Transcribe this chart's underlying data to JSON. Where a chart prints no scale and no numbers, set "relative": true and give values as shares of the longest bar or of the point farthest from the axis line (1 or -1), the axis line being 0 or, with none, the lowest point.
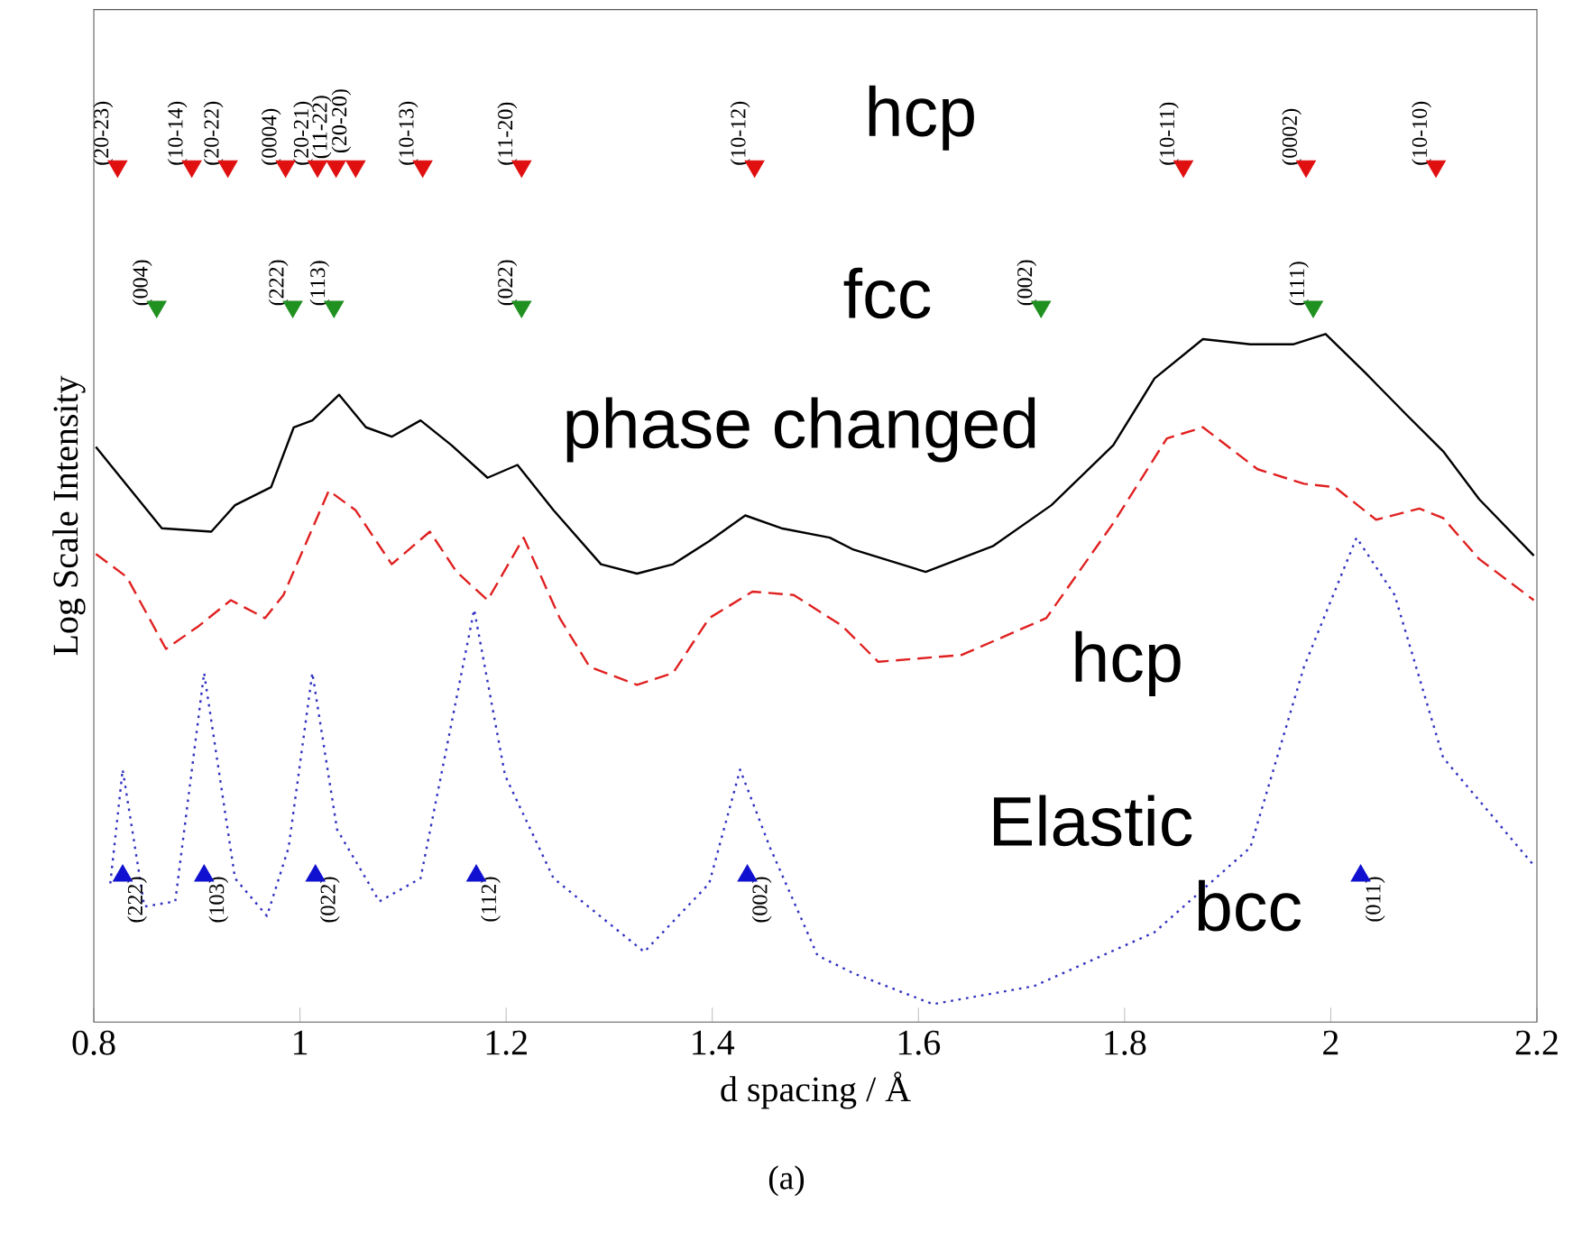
{
  "chart_data": {
    "type": "line",
    "relative": true,
    "xlabel": "d spacing / Å",
    "ylabel": "Log Scale Intensity",
    "xlim": [
      0.8,
      2.2
    ],
    "xticks": [
      0.8,
      1,
      1.2,
      1.4,
      1.6,
      1.8,
      2,
      2.2
    ],
    "legend": false,
    "annotations": [
      "(a)",
      {
        "text": "(20-23)",
        "x": 0.823,
        "y": 1
      },
      {
        "text": "(10-14)",
        "x": 0.895,
        "y": 1
      },
      {
        "text": "(20-22)",
        "x": 0.93,
        "y": 1
      },
      {
        "text": "(0004)",
        "x": 0.986,
        "y": 1
      },
      {
        "text": "(20-21)",
        "x": 1.017,
        "y": 1
      },
      {
        "text": "(11-22)",
        "x": 1.035,
        "y": 1
      },
      {
        "text": "(20-20)",
        "x": 1.054,
        "y": 1
      },
      {
        "text": "(10-13)",
        "x": 1.119,
        "y": 1
      },
      {
        "text": "(11-20)",
        "x": 1.215,
        "y": 1
      },
      {
        "text": "(10-12)",
        "x": 1.441,
        "y": 1
      },
      {
        "text": "(10-11)",
        "x": 1.857,
        "y": 1
      },
      {
        "text": "(0002)",
        "x": 1.976,
        "y": 1
      },
      {
        "text": "(10-10)",
        "x": 2.102,
        "y": 1
      },
      {
        "text": "(004)",
        "x": 0.861,
        "y": 0.836
      },
      {
        "text": "(222)",
        "x": 0.993,
        "y": 0.836
      },
      {
        "text": "(113)",
        "x": 1.033,
        "y": 0.836
      },
      {
        "text": "(022)",
        "x": 1.215,
        "y": 0.836
      },
      {
        "text": "(002)",
        "x": 1.719,
        "y": 0.836
      },
      {
        "text": "(111)",
        "x": 1.983,
        "y": 0.836
      },
      {
        "text": "(222)",
        "x": 0.828,
        "y": 0.171
      },
      {
        "text": "(103)",
        "x": 0.907,
        "y": 0.171
      },
      {
        "text": "(022)",
        "x": 1.015,
        "y": 0.171
      },
      {
        "text": "(112)",
        "x": 1.171,
        "y": 0.171
      },
      {
        "text": "(002)",
        "x": 1.434,
        "y": 0.171
      },
      {
        "text": "(011)",
        "x": 2.029,
        "y": 0.171
      }
    ],
    "series": [
      {
        "name": "phase changed",
        "type": "line",
        "color": "#000000",
        "line_style": "solid",
        "marker": "none",
        "x": [
          0.802,
          0.866,
          0.914,
          0.937,
          0.972,
          0.994,
          1.012,
          1.038,
          1.064,
          1.089,
          1.117,
          1.147,
          1.182,
          1.211,
          1.246,
          1.292,
          1.327,
          1.362,
          1.397,
          1.432,
          1.467,
          1.514,
          1.537,
          1.607,
          1.672,
          1.729,
          1.789,
          1.829,
          1.876,
          1.922,
          1.964,
          1.995,
          2.034,
          2.074,
          2.109,
          2.144,
          2.197
        ],
        "values": [
          0.672,
          0.577,
          0.573,
          0.604,
          0.625,
          0.695,
          0.703,
          0.733,
          0.695,
          0.684,
          0.703,
          0.674,
          0.636,
          0.651,
          0.598,
          0.535,
          0.524,
          0.535,
          0.562,
          0.592,
          0.577,
          0.566,
          0.552,
          0.526,
          0.556,
          0.604,
          0.674,
          0.752,
          0.798,
          0.792,
          0.792,
          0.804,
          0.758,
          0.709,
          0.667,
          0.611,
          0.545
        ]
      },
      {
        "name": "hcp",
        "type": "line",
        "color": "#e02020",
        "line_style": "dashed",
        "marker": "none",
        "x": [
          0.802,
          0.832,
          0.87,
          0.902,
          0.933,
          0.966,
          0.984,
          1.028,
          1.054,
          1.089,
          1.126,
          1.152,
          1.182,
          1.217,
          1.252,
          1.281,
          1.327,
          1.362,
          1.397,
          1.439,
          1.479,
          1.526,
          1.561,
          1.642,
          1.724,
          1.789,
          1.841,
          1.876,
          1.929,
          1.974,
          2.004,
          2.044,
          2.086,
          2.109,
          2.144,
          2.197
        ],
        "values": [
          0.547,
          0.52,
          0.436,
          0.463,
          0.493,
          0.472,
          0.499,
          0.621,
          0.598,
          0.535,
          0.573,
          0.526,
          0.493,
          0.566,
          0.472,
          0.415,
          0.394,
          0.408,
          0.472,
          0.503,
          0.499,
          0.463,
          0.421,
          0.429,
          0.472,
          0.583,
          0.682,
          0.695,
          0.646,
          0.629,
          0.625,
          0.587,
          0.6,
          0.589,
          0.541,
          0.493
        ]
      },
      {
        "name": "Elastic",
        "type": "line",
        "color": "#3030c0",
        "line_style": "dotted",
        "marker": "none",
        "x": [
          0.816,
          0.828,
          0.84,
          0.849,
          0.879,
          0.907,
          0.937,
          0.968,
          0.989,
          1.012,
          1.036,
          1.077,
          1.117,
          1.169,
          1.199,
          1.246,
          1.334,
          1.397,
          1.427,
          1.456,
          1.502,
          1.537,
          1.614,
          1.712,
          1.829,
          1.922,
          1.974,
          2.025,
          2.062,
          2.109,
          2.197
        ],
        "values": [
          0.162,
          0.295,
          0.204,
          0.135,
          0.141,
          0.408,
          0.168,
          0.124,
          0.204,
          0.408,
          0.225,
          0.141,
          0.168,
          0.482,
          0.288,
          0.168,
          0.082,
          0.162,
          0.295,
          0.204,
          0.078,
          0.057,
          0.021,
          0.042,
          0.105,
          0.204,
          0.415,
          0.566,
          0.499,
          0.309,
          0.183
        ]
      },
      {
        "name": "hcp",
        "type": "scatter",
        "color": "#e01010",
        "marker": "triangle",
        "x": [
          0.823,
          0.895,
          0.93,
          0.986,
          1.017,
          1.035,
          1.054,
          1.119,
          1.215,
          1.441,
          1.857,
          1.976,
          2.102
        ],
        "values": [
          1,
          1,
          1,
          1,
          1,
          1,
          1,
          1,
          1,
          1,
          1,
          1,
          1
        ]
      },
      {
        "name": "fcc",
        "type": "scatter",
        "color": "#209020",
        "marker": "triangle",
        "x": [
          0.861,
          0.993,
          1.033,
          1.215,
          1.719,
          1.983
        ],
        "values": [
          0.836,
          0.836,
          0.836,
          0.836,
          0.836,
          0.836
        ]
      },
      {
        "name": "bcc",
        "type": "scatter",
        "color": "#1010d0",
        "marker": "triangle",
        "x": [
          0.828,
          0.907,
          1.015,
          1.171,
          1.434,
          2.029
        ],
        "values": [
          0.171,
          0.171,
          0.171,
          0.171,
          0.171,
          0.171
        ]
      }
    ]
  }
}
